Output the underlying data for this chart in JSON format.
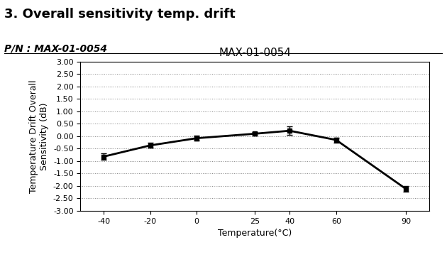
{
  "title_main": "3. Overall sensitivity temp. drift",
  "pn_label": "P/N : MAX-01-0054",
  "chart_title": "MAX-01-0054",
  "xlabel": "Temperature(°C)",
  "ylabel": "Temperature Drift Overall\nSensitivity (dB)",
  "x": [
    -40,
    -20,
    0,
    25,
    40,
    60,
    90
  ],
  "y": [
    -0.82,
    -0.37,
    -0.08,
    0.1,
    0.22,
    -0.15,
    -2.12
  ],
  "yerr": [
    0.12,
    0.1,
    0.1,
    0.08,
    0.18,
    0.1,
    0.12
  ],
  "ylim": [
    -3.0,
    3.0
  ],
  "yticks": [
    -3.0,
    -2.5,
    -2.0,
    -1.5,
    -1.0,
    -0.5,
    0.0,
    0.5,
    1.0,
    1.5,
    2.0,
    2.5,
    3.0
  ],
  "xticks": [
    -40,
    -20,
    0,
    25,
    40,
    60,
    90
  ],
  "line_color": "#000000",
  "marker": "s",
  "marker_size": 4,
  "line_width": 2.0,
  "grid_color": "#888888",
  "grid_linestyle": ":",
  "background_color": "#ffffff",
  "plot_bg_color": "#ffffff",
  "title_fontsize": 13,
  "pn_fontsize": 10,
  "chart_title_fontsize": 11,
  "axis_label_fontsize": 9,
  "tick_fontsize": 8
}
